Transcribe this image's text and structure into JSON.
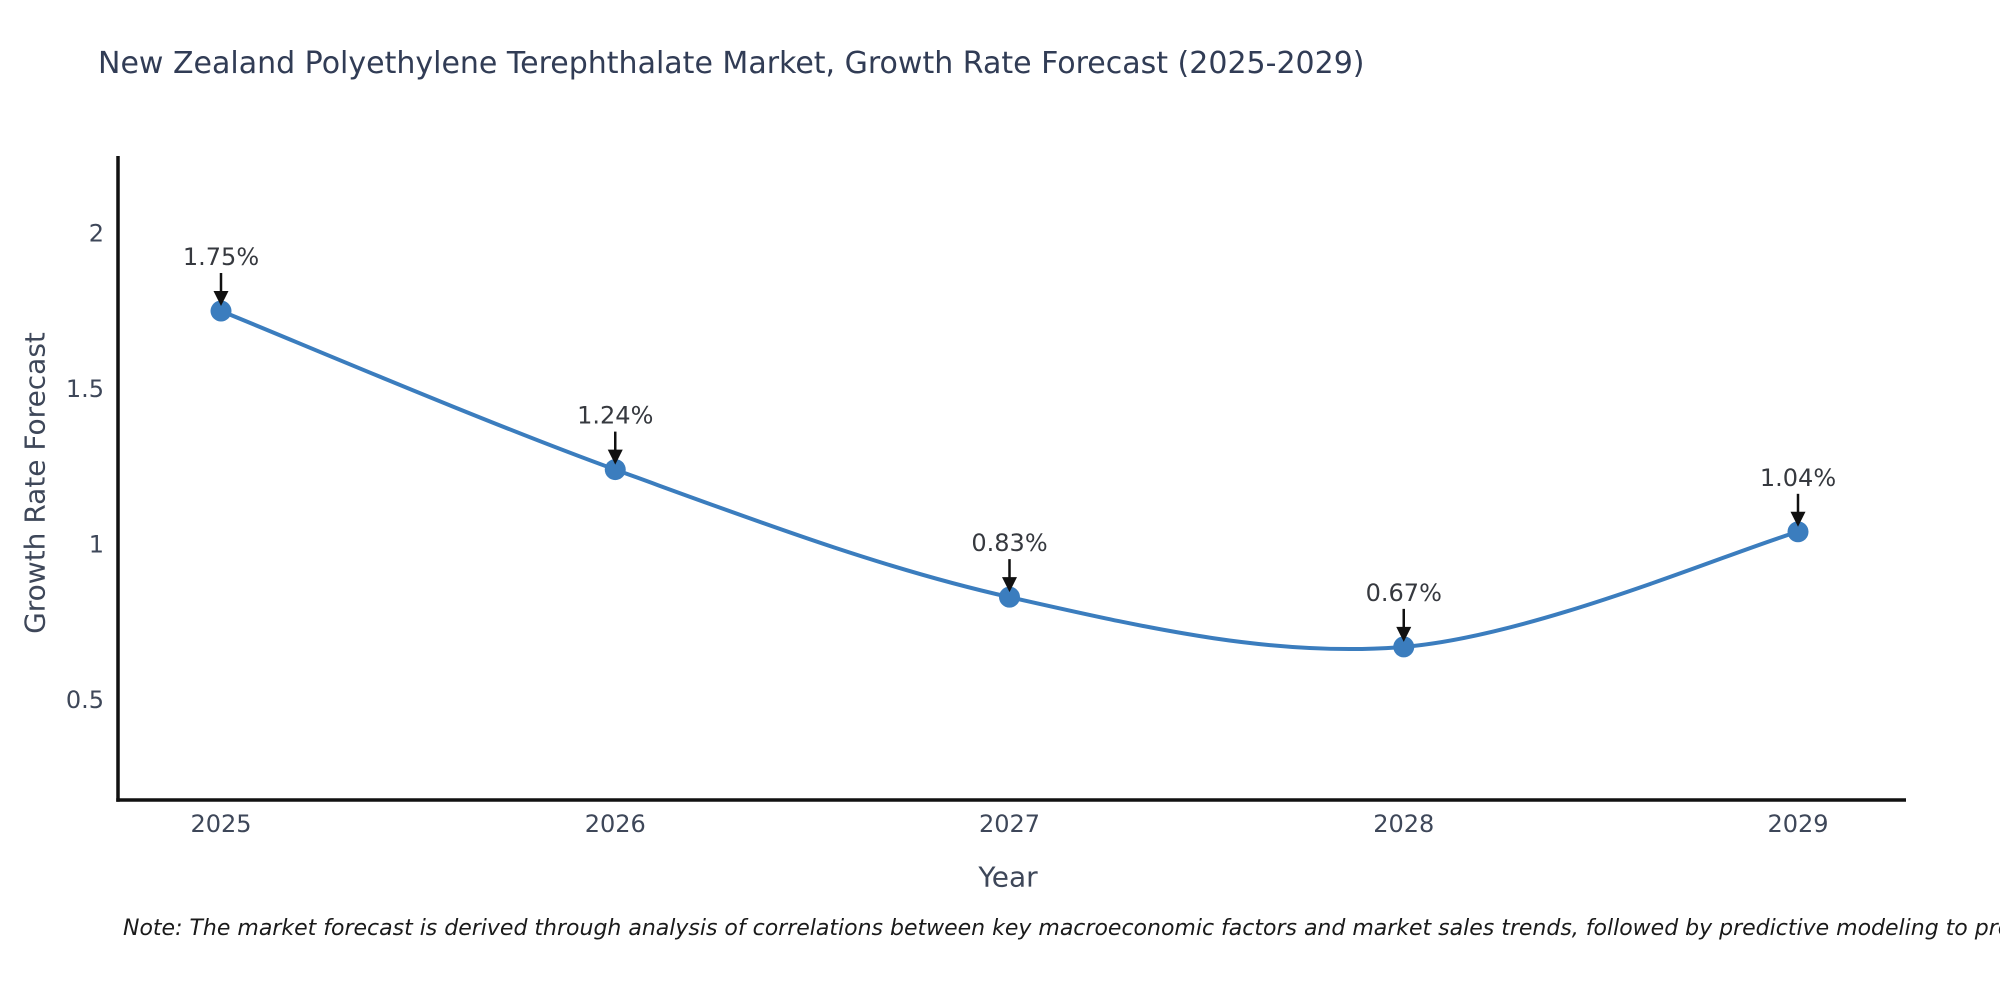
{
  "title": "New Zealand Polyethylene Terephthalate Market, Growth Rate Forecast (2025-2029)",
  "note": "Note: The market forecast is derived through analysis of correlations between key macroeconomic factors and market sales trends, followed by predictive modeling to project future sales",
  "chart_data": {
    "type": "line",
    "x": [
      2025,
      2026,
      2027,
      2028,
      2029
    ],
    "values": [
      1.75,
      1.24,
      0.83,
      0.67,
      1.04
    ],
    "point_labels": [
      "1.75%",
      "1.24%",
      "0.83%",
      "0.67%",
      "1.04%"
    ],
    "title": "New Zealand Polyethylene Terephthalate Market, Growth Rate Forecast (2025-2029)",
    "xlabel": "Year",
    "ylabel": "Growth Rate Forecast",
    "yticks": [
      0.5,
      1,
      1.5,
      2
    ],
    "ylim": [
      0.17,
      2.25
    ],
    "xlim": [
      2024.72,
      2029.27
    ],
    "grid": false,
    "legend": null,
    "smooth": true,
    "colors": {
      "line": "#3b7dbe",
      "marker": "#3b7dbe",
      "axis": "#111111",
      "tick_label": "#3e4759",
      "annotation_text": "#36393f",
      "annotation_arrow": "#111111",
      "title": "#313c55",
      "background": "#ffffff"
    }
  }
}
